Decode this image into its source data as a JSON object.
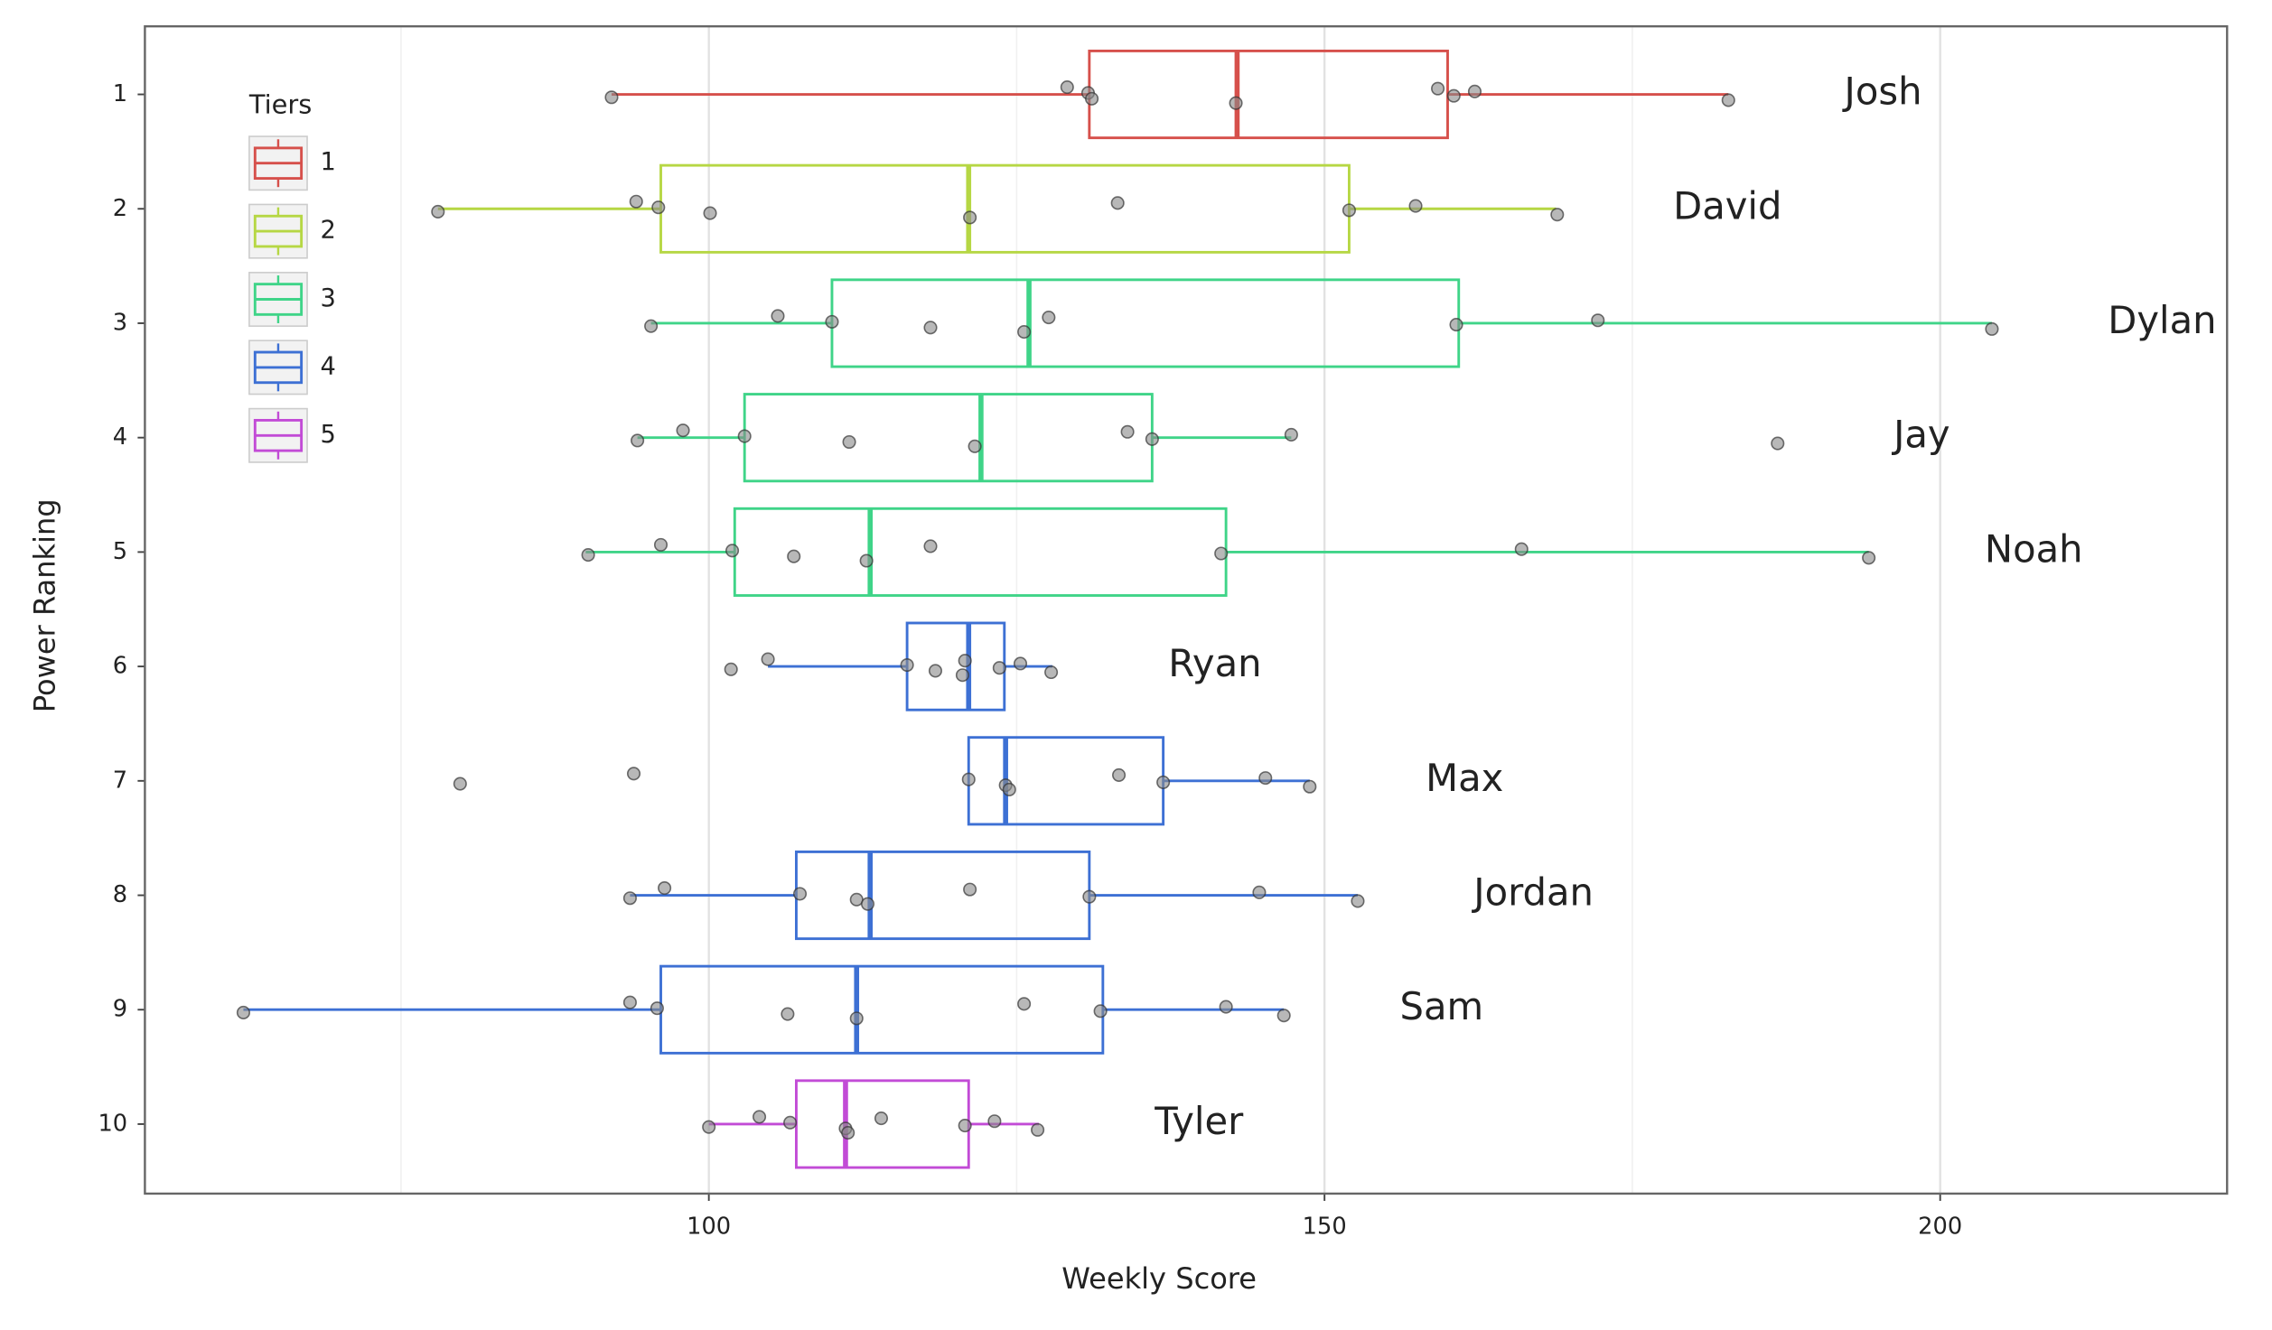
{
  "chart_data": {
    "type": "boxplot",
    "xlabel": "Weekly Score",
    "ylabel": "Power Ranking",
    "xlim": [
      54.2,
      223.3
    ],
    "xticks": [
      100,
      150,
      200
    ],
    "xminor": [
      75,
      125,
      175
    ],
    "grid": true,
    "categories": [
      "1",
      "2",
      "3",
      "4",
      "5",
      "6",
      "7",
      "8",
      "9",
      "10"
    ],
    "legend": {
      "title": "Tiers",
      "position": "top-left",
      "entries": [
        {
          "name": "1",
          "color": "#d6504b"
        },
        {
          "name": "2",
          "color": "#b6d744"
        },
        {
          "name": "3",
          "color": "#3fd488"
        },
        {
          "name": "4",
          "color": "#3d70d4"
        },
        {
          "name": "5",
          "color": "#c24bd6"
        }
      ]
    },
    "boxes": [
      {
        "name": "Josh",
        "tier": "1",
        "whisker_low": 92.1,
        "q1": 130.9,
        "median": 142.9,
        "q3": 160.0,
        "whisker_high": 182.8,
        "points": [
          92.1,
          129.1,
          130.8,
          131.1,
          142.8,
          159.2,
          160.5,
          162.2,
          182.8
        ]
      },
      {
        "name": "David",
        "tier": "2",
        "whisker_low": 78.0,
        "q1": 96.1,
        "median": 121.1,
        "q3": 152.0,
        "whisker_high": 168.8,
        "points": [
          78.0,
          94.1,
          95.9,
          100.1,
          121.2,
          133.2,
          152.0,
          157.4,
          168.9
        ]
      },
      {
        "name": "Dylan",
        "tier": "3",
        "whisker_low": 95.3,
        "q1": 110.0,
        "median": 126.0,
        "q3": 160.9,
        "whisker_high": 204.2,
        "points": [
          95.3,
          105.6,
          110.0,
          118.0,
          125.6,
          127.6,
          160.7,
          172.2,
          204.2
        ]
      },
      {
        "name": "Jay",
        "tier": "3",
        "whisker_low": 94.2,
        "q1": 102.9,
        "median": 122.1,
        "q3": 136.0,
        "whisker_high": 147.3,
        "points": [
          94.2,
          97.9,
          102.9,
          111.4,
          121.6,
          134.0,
          136.0,
          147.3,
          186.8
        ]
      },
      {
        "name": "Noah",
        "tier": "3",
        "whisker_low": 90.0,
        "q1": 102.1,
        "median": 113.1,
        "q3": 142.0,
        "whisker_high": 194.2,
        "points": [
          90.2,
          96.1,
          101.9,
          106.9,
          112.8,
          118.0,
          141.6,
          166.0,
          194.2
        ]
      },
      {
        "name": "Ryan",
        "tier": "4",
        "whisker_low": 104.8,
        "q1": 116.1,
        "median": 121.1,
        "q3": 124.0,
        "whisker_high": 127.9,
        "points": [
          101.8,
          104.8,
          116.1,
          118.4,
          120.6,
          120.8,
          123.6,
          125.3,
          127.8
        ]
      },
      {
        "name": "Max",
        "tier": "4",
        "whisker_low": 121.1,
        "q1": 121.1,
        "median": 124.1,
        "q3": 136.9,
        "whisker_high": 148.8,
        "points": [
          79.8,
          93.9,
          121.1,
          124.1,
          124.4,
          133.3,
          136.9,
          145.2,
          148.8
        ]
      },
      {
        "name": "Jordan",
        "tier": "4",
        "whisker_low": 93.6,
        "q1": 107.1,
        "median": 113.1,
        "q3": 130.9,
        "whisker_high": 152.7,
        "points": [
          93.6,
          96.4,
          107.4,
          112.0,
          112.9,
          121.2,
          130.9,
          144.7,
          152.7
        ]
      },
      {
        "name": "Sam",
        "tier": "4",
        "whisker_low": 62.2,
        "q1": 96.1,
        "median": 112.0,
        "q3": 132.0,
        "whisker_high": 146.7,
        "points": [
          62.2,
          93.6,
          95.8,
          106.4,
          112.0,
          125.6,
          131.8,
          142.0,
          146.7
        ]
      },
      {
        "name": "Tyler",
        "tier": "5",
        "whisker_low": 100.0,
        "q1": 107.1,
        "median": 111.1,
        "q3": 121.1,
        "whisker_high": 126.8,
        "points": [
          100.0,
          104.1,
          106.6,
          111.1,
          111.3,
          114.0,
          120.8,
          123.2,
          126.7
        ]
      }
    ]
  }
}
